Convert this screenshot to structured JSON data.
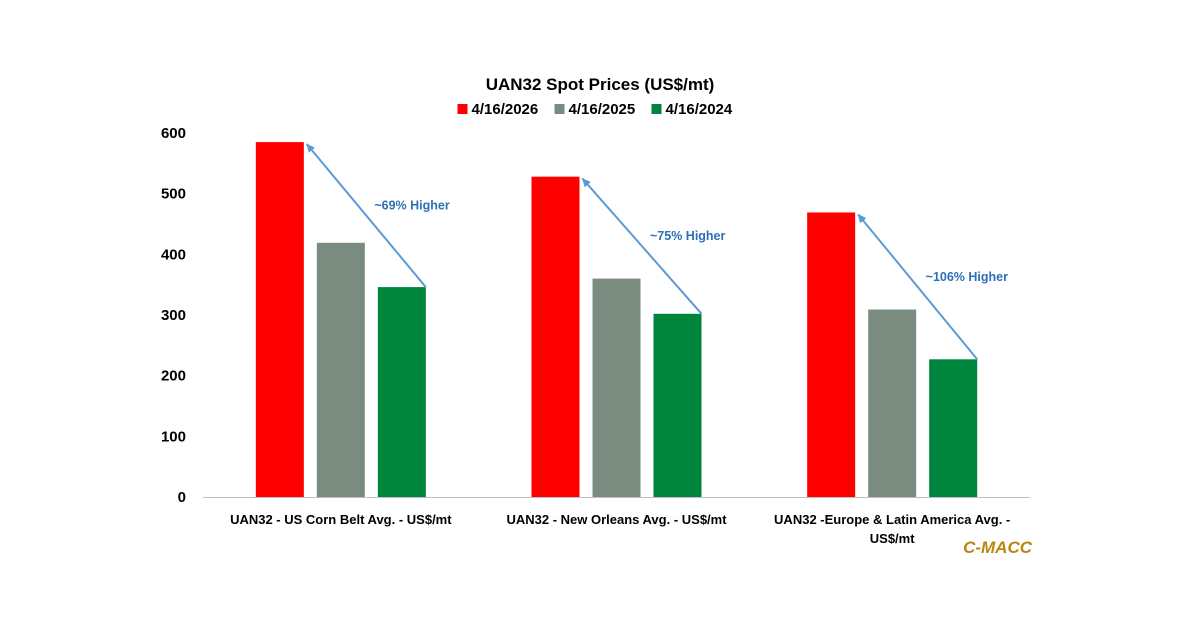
{
  "chart_data": {
    "type": "bar",
    "title": "UAN32 Spot Prices (US$/mt)",
    "categories_lines": [
      [
        "UAN32 - US Corn Belt Avg. - US$/mt"
      ],
      [
        "UAN32 - New Orleans Avg. - US$/mt"
      ],
      [
        "UAN32 -Europe & Latin America Avg. -",
        "US$/mt"
      ]
    ],
    "series": [
      {
        "name": "4/16/2026",
        "color": "#ff0000",
        "values": [
          585,
          528,
          469
        ]
      },
      {
        "name": "4/16/2025",
        "color": "#7a8c80",
        "values": [
          419,
          360,
          309
        ]
      },
      {
        "name": "4/16/2024",
        "color": "#00853e",
        "values": [
          346,
          302,
          227
        ]
      }
    ],
    "ylim": [
      0,
      600
    ],
    "yticks": [
      0,
      100,
      200,
      300,
      400,
      500,
      600
    ],
    "grid": false,
    "legend": "top",
    "annotations": [
      {
        "category_index": 0,
        "from_series": 2,
        "to_series": 0,
        "text": "~69% Higher"
      },
      {
        "category_index": 1,
        "from_series": 2,
        "to_series": 0,
        "text": "~75% Higher"
      },
      {
        "category_index": 2,
        "from_series": 2,
        "to_series": 0,
        "text": "~106% Higher"
      }
    ],
    "annotation_color": "#5b9bd5"
  },
  "brand": "C-MACC"
}
